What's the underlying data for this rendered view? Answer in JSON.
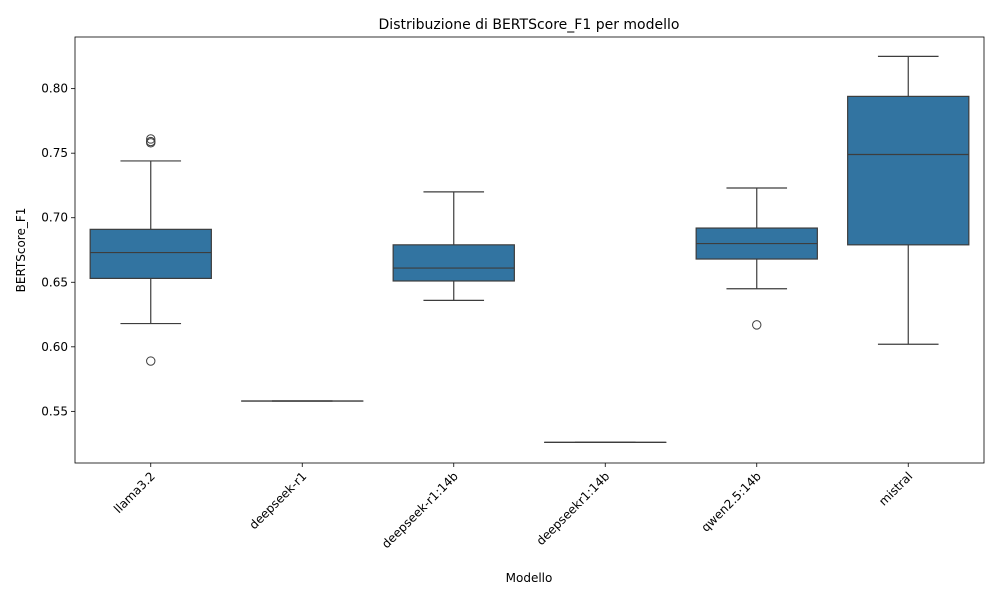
{
  "chart_data": {
    "type": "box",
    "title": "Distribuzione di BERTScore_F1 per modello",
    "xlabel": "Modello",
    "ylabel": "BERTScore_F1",
    "ylim": [
      0.51,
      0.84
    ],
    "yticks": [
      "0.55",
      "0.60",
      "0.65",
      "0.70",
      "0.75",
      "0.80"
    ],
    "box_color": "#3274a1",
    "line_color": "#3d3d3d",
    "categories": [
      "llama3.2",
      "deepseek-r1",
      "deepseek-r1:14b",
      "deepseekr1:14b",
      "qwen2.5:14b",
      "mistral"
    ],
    "boxes": [
      {
        "category": "llama3.2",
        "whisker_low": 0.618,
        "q1": 0.653,
        "median": 0.673,
        "q3": 0.691,
        "whisker_high": 0.744,
        "outliers": [
          0.761,
          0.759,
          0.758,
          0.589
        ]
      },
      {
        "category": "deepseek-r1",
        "whisker_low": 0.558,
        "q1": 0.558,
        "median": 0.558,
        "q3": 0.558,
        "whisker_high": 0.558,
        "outliers": []
      },
      {
        "category": "deepseek-r1:14b",
        "whisker_low": 0.636,
        "q1": 0.651,
        "median": 0.661,
        "q3": 0.679,
        "whisker_high": 0.72,
        "outliers": []
      },
      {
        "category": "deepseekr1:14b",
        "whisker_low": 0.526,
        "q1": 0.526,
        "median": 0.526,
        "q3": 0.526,
        "whisker_high": 0.526,
        "outliers": []
      },
      {
        "category": "qwen2.5:14b",
        "whisker_low": 0.645,
        "q1": 0.668,
        "median": 0.68,
        "q3": 0.692,
        "whisker_high": 0.723,
        "outliers": [
          0.617
        ]
      },
      {
        "category": "mistral",
        "whisker_low": 0.602,
        "q1": 0.679,
        "median": 0.749,
        "q3": 0.794,
        "whisker_high": 0.825,
        "outliers": []
      }
    ]
  }
}
